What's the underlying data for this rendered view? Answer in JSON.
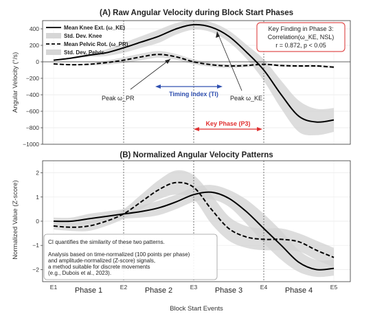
{
  "chart_data": [
    {
      "type": "line",
      "title": "(A) Raw Angular Velocity during Block Start Phases",
      "xlabel": "",
      "ylabel": "Angular Velocity (°/s)",
      "ylim": [
        -1000,
        500
      ],
      "yticks": [
        "400",
        "200",
        "0",
        "−200",
        "−400",
        "−600",
        "−800",
        "−1000"
      ],
      "ytick_values": [
        400,
        200,
        0,
        -200,
        -400,
        -600,
        -800,
        -1000
      ],
      "xlim": [
        0,
        4
      ],
      "grid": true,
      "legend_position": "top-left",
      "legend": [
        "Mean Knee Ext. (ω_KE)",
        "Std. Dev. Knee",
        "Mean Pelvic Rot. (ω_PR)",
        "Std. Dev. Pelvis"
      ],
      "x": [
        0,
        0.25,
        0.5,
        0.75,
        1.0,
        1.25,
        1.5,
        1.75,
        2.0,
        2.25,
        2.5,
        2.75,
        3.0,
        3.25,
        3.5,
        3.75,
        4.0
      ],
      "series": [
        {
          "name": "Mean Knee Ext. (ω_KE)",
          "style": "solid",
          "color": "#000000",
          "values": [
            20,
            45,
            80,
            110,
            170,
            240,
            310,
            400,
            450,
            420,
            310,
            120,
            -100,
            -400,
            -660,
            -730,
            -705
          ],
          "std_upper": [
            25,
            55,
            100,
            150,
            230,
            310,
            390,
            470,
            510,
            480,
            380,
            210,
            30,
            -230,
            -470,
            -570,
            -560
          ],
          "std_lower": [
            15,
            35,
            60,
            70,
            110,
            170,
            230,
            330,
            390,
            360,
            240,
            40,
            -230,
            -570,
            -850,
            -890,
            -850
          ]
        },
        {
          "name": "Mean Pelvic Rot. (ω_PR)",
          "style": "dashed",
          "color": "#000000",
          "values": [
            -25,
            -35,
            -30,
            -10,
            20,
            60,
            90,
            60,
            0,
            -35,
            -50,
            -45,
            -30,
            -45,
            -50,
            -50,
            -65
          ],
          "std_upper": [
            -20,
            -28,
            -18,
            15,
            55,
            100,
            130,
            95,
            30,
            -10,
            -25,
            -25,
            -15,
            -30,
            -35,
            -35,
            -50
          ],
          "std_lower": [
            -30,
            -42,
            -42,
            -35,
            -15,
            20,
            50,
            25,
            -30,
            -60,
            -75,
            -65,
            -45,
            -60,
            -65,
            -65,
            -80
          ]
        }
      ],
      "annotations": {
        "peak_pr": "Peak ω_PR",
        "peak_ke": "Peak ω_KE",
        "timing_index": "Timing Index (TI)",
        "key_phase": "Key Phase (P3)",
        "finding_title": "Key Finding in Phase 3:",
        "finding_line2": "Correlation(ω_KE, NSL)",
        "finding_line3": "r = 0.872, p < 0.05"
      },
      "colors": {
        "band": "#d6d6d6",
        "timing_arrow": "#3050b0",
        "key_phase": "#e03030",
        "finding_border": "#e05050"
      }
    },
    {
      "type": "line",
      "title": "(B) Normalized Angular Velocity Patterns",
      "xlabel": "Block Start Events",
      "ylabel": "Normalized Value (Z-score)",
      "ylim": [
        -2.5,
        2.5
      ],
      "yticks": [
        "2",
        "1",
        "0",
        "−1",
        "−2"
      ],
      "ytick_values": [
        2,
        1,
        0,
        -1,
        -2
      ],
      "xlim": [
        0,
        4
      ],
      "grid": true,
      "x": [
        0,
        0.25,
        0.5,
        0.75,
        1.0,
        1.25,
        1.5,
        1.75,
        2.0,
        2.25,
        2.5,
        2.75,
        3.0,
        3.25,
        3.5,
        3.75,
        4.0
      ],
      "series": [
        {
          "name": "Mean Knee Ext. (ω_KE)",
          "style": "solid",
          "color": "#000000",
          "values": [
            0.0,
            0.0,
            0.1,
            0.2,
            0.3,
            0.4,
            0.55,
            0.8,
            1.1,
            1.2,
            0.95,
            0.4,
            -0.3,
            -1.0,
            -1.7,
            -2.0,
            -1.95
          ],
          "std_upper": [
            0.15,
            0.15,
            0.3,
            0.4,
            0.5,
            0.65,
            0.85,
            1.1,
            1.4,
            1.5,
            1.3,
            0.9,
            0.3,
            -0.4,
            -1.2,
            -1.6,
            -1.6
          ],
          "std_lower": [
            -0.15,
            -0.15,
            -0.1,
            0.0,
            0.1,
            0.15,
            0.25,
            0.5,
            0.8,
            0.9,
            0.6,
            -0.1,
            -0.9,
            -1.6,
            -2.1,
            -2.3,
            -2.25
          ]
        },
        {
          "name": "Mean Pelvic Rot. (ω_PR)",
          "style": "dashed",
          "color": "#000000",
          "values": [
            -0.2,
            -0.25,
            -0.2,
            0.0,
            0.3,
            0.8,
            1.3,
            1.6,
            1.4,
            0.5,
            -0.3,
            -0.65,
            -0.75,
            -0.75,
            -0.85,
            -1.2,
            -1.5
          ],
          "std_upper": [
            -0.05,
            -0.1,
            0.0,
            0.2,
            0.5,
            1.1,
            1.7,
            2.1,
            1.9,
            1.1,
            0.2,
            -0.2,
            -0.3,
            -0.3,
            -0.5,
            -0.8,
            -1.1
          ],
          "std_lower": [
            -0.35,
            -0.4,
            -0.4,
            -0.2,
            0.1,
            0.5,
            0.9,
            1.1,
            0.9,
            -0.1,
            -0.8,
            -1.1,
            -1.2,
            -1.2,
            -1.25,
            -1.6,
            -1.9
          ]
        }
      ],
      "events": [
        "E1",
        "E2",
        "E3",
        "E4",
        "E5"
      ],
      "phases": [
        "Phase 1",
        "Phase 2",
        "Phase 3",
        "Phase 4"
      ],
      "note": [
        "CI quantifies the similarity of these two patterns.",
        "",
        "Analysis based on time-normalized (100 points per phase)",
        "and amplitude-normalized (Z-score) signals,",
        "a method suitable for discrete movements",
        "(e.g., Dubois et al., 2023)."
      ]
    }
  ]
}
